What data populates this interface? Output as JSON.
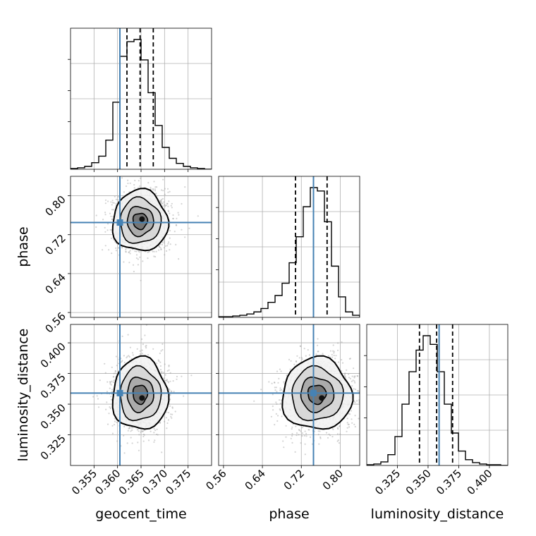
{
  "chart_data": {
    "type": "corner",
    "parameters": [
      "geocent_time",
      "phase",
      "luminosity_distance"
    ],
    "truths": {
      "geocent_time": 0.3605,
      "phase": 0.745,
      "luminosity_distance": 0.359
    },
    "quantiles": {
      "geocent_time": [
        0.362,
        0.3648,
        0.3676
      ],
      "phase": [
        0.708,
        0.745,
        0.773
      ],
      "luminosity_distance": [
        0.343,
        0.357,
        0.37
      ]
    },
    "histograms": {
      "geocent_time": {
        "range": [
          0.35,
          0.38
        ],
        "counts": [
          1,
          2,
          4,
          9,
          18,
          40,
          92,
          155,
          175,
          178,
          150,
          105,
          60,
          30,
          15,
          8,
          4,
          2,
          1,
          0
        ]
      },
      "phase": {
        "range": [
          0.55,
          0.84
        ],
        "counts": [
          1,
          1,
          2,
          3,
          5,
          8,
          13,
          22,
          32,
          50,
          80,
          118,
          162,
          190,
          185,
          140,
          75,
          30,
          8,
          3
        ]
      },
      "luminosity_distance": {
        "range": [
          0.3,
          0.415
        ],
        "counts": [
          1,
          2,
          5,
          15,
          40,
          85,
          130,
          160,
          180,
          168,
          130,
          85,
          45,
          20,
          8,
          4,
          2,
          1,
          1,
          0
        ]
      }
    },
    "panels": {
      "phase_vs_geocent_time": {
        "center": [
          0.3648,
          0.748
        ],
        "spread": [
          0.0028,
          0.03
        ],
        "peak": [
          0.3652,
          0.752
        ]
      },
      "luminosity_distance_vs_geocent_time": {
        "center": [
          0.3648,
          0.358
        ],
        "spread": [
          0.0028,
          0.014
        ],
        "peak": [
          0.3652,
          0.355
        ]
      },
      "luminosity_distance_vs_phase": {
        "center": [
          0.752,
          0.358
        ],
        "spread": [
          0.034,
          0.014
        ],
        "peak": [
          0.762,
          0.355
        ]
      }
    },
    "axes": {
      "geocent_time": {
        "lim": [
          0.35,
          0.38
        ],
        "ticks": [
          0.355,
          0.36,
          0.365,
          0.37,
          0.375
        ],
        "tick_labels": [
          "0.355",
          "0.360",
          "0.365",
          "0.370",
          "0.375"
        ]
      },
      "phase": {
        "lim": [
          0.55,
          0.84
        ],
        "ticks": [
          0.56,
          0.64,
          0.72,
          0.8
        ],
        "tick_labels": [
          "0.56",
          "0.64",
          "0.72",
          "0.80"
        ]
      },
      "luminosity_distance": {
        "lim": [
          0.3,
          0.415
        ],
        "ticks": [
          0.325,
          0.35,
          0.375,
          0.4
        ],
        "tick_labels": [
          "0.325",
          "0.350",
          "0.375",
          "0.400"
        ]
      }
    },
    "labels": {
      "geocent_time": "geocent_time",
      "phase": "phase",
      "luminosity_distance": "luminosity_distance"
    },
    "grid": true,
    "colors": {
      "truth": "#4682b4",
      "hist": "#000000",
      "points": "#a0a0a0",
      "grid": "#b0b0b0"
    }
  }
}
